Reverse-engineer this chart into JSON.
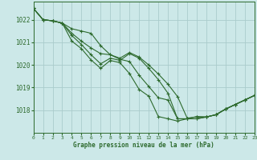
{
  "bg_color": "#cce8e8",
  "grid_color": "#aacccc",
  "line_color": "#2d6a2d",
  "title": "Graphe pression niveau de la mer (hPa)",
  "ylim": [
    1017.0,
    1022.8
  ],
  "xlim": [
    0,
    23
  ],
  "yticks": [
    1018,
    1019,
    1020,
    1021,
    1022
  ],
  "xticks": [
    0,
    1,
    2,
    3,
    4,
    5,
    6,
    7,
    8,
    9,
    10,
    11,
    12,
    13,
    14,
    15,
    16,
    17,
    18,
    19,
    20,
    21,
    22,
    23
  ],
  "series": [
    [
      1022.5,
      1022.0,
      1021.95,
      1021.85,
      1021.6,
      1021.5,
      1021.4,
      1020.85,
      1020.45,
      1020.3,
      1020.55,
      1020.35,
      1020.0,
      1019.6,
      1019.15,
      1018.6,
      1017.65,
      1017.7,
      1017.7,
      1017.8,
      1018.05,
      1018.25,
      1018.45,
      1018.65
    ],
    [
      1022.5,
      1022.0,
      1021.95,
      1021.85,
      1021.4,
      1021.05,
      1020.75,
      1020.5,
      1020.45,
      1020.25,
      1020.15,
      1019.55,
      1019.05,
      1018.55,
      1018.45,
      1017.62,
      1017.62,
      1017.62,
      1017.7,
      1017.8,
      1018.05,
      1018.25,
      1018.45,
      1018.65
    ],
    [
      1022.5,
      1022.0,
      1021.95,
      1021.85,
      1021.3,
      1020.9,
      1020.45,
      1020.05,
      1020.3,
      1020.2,
      1020.5,
      1020.3,
      1019.85,
      1019.35,
      1018.75,
      1017.62,
      1017.62,
      1017.62,
      1017.7,
      1017.8,
      1018.05,
      1018.25,
      1018.45,
      1018.65
    ],
    [
      1022.5,
      1022.0,
      1021.95,
      1021.85,
      1021.05,
      1020.72,
      1020.22,
      1019.85,
      1020.2,
      1020.1,
      1019.62,
      1018.92,
      1018.62,
      1017.72,
      1017.62,
      1017.52,
      1017.62,
      1017.72,
      1017.7,
      1017.8,
      1018.05,
      1018.25,
      1018.45,
      1018.65
    ]
  ]
}
